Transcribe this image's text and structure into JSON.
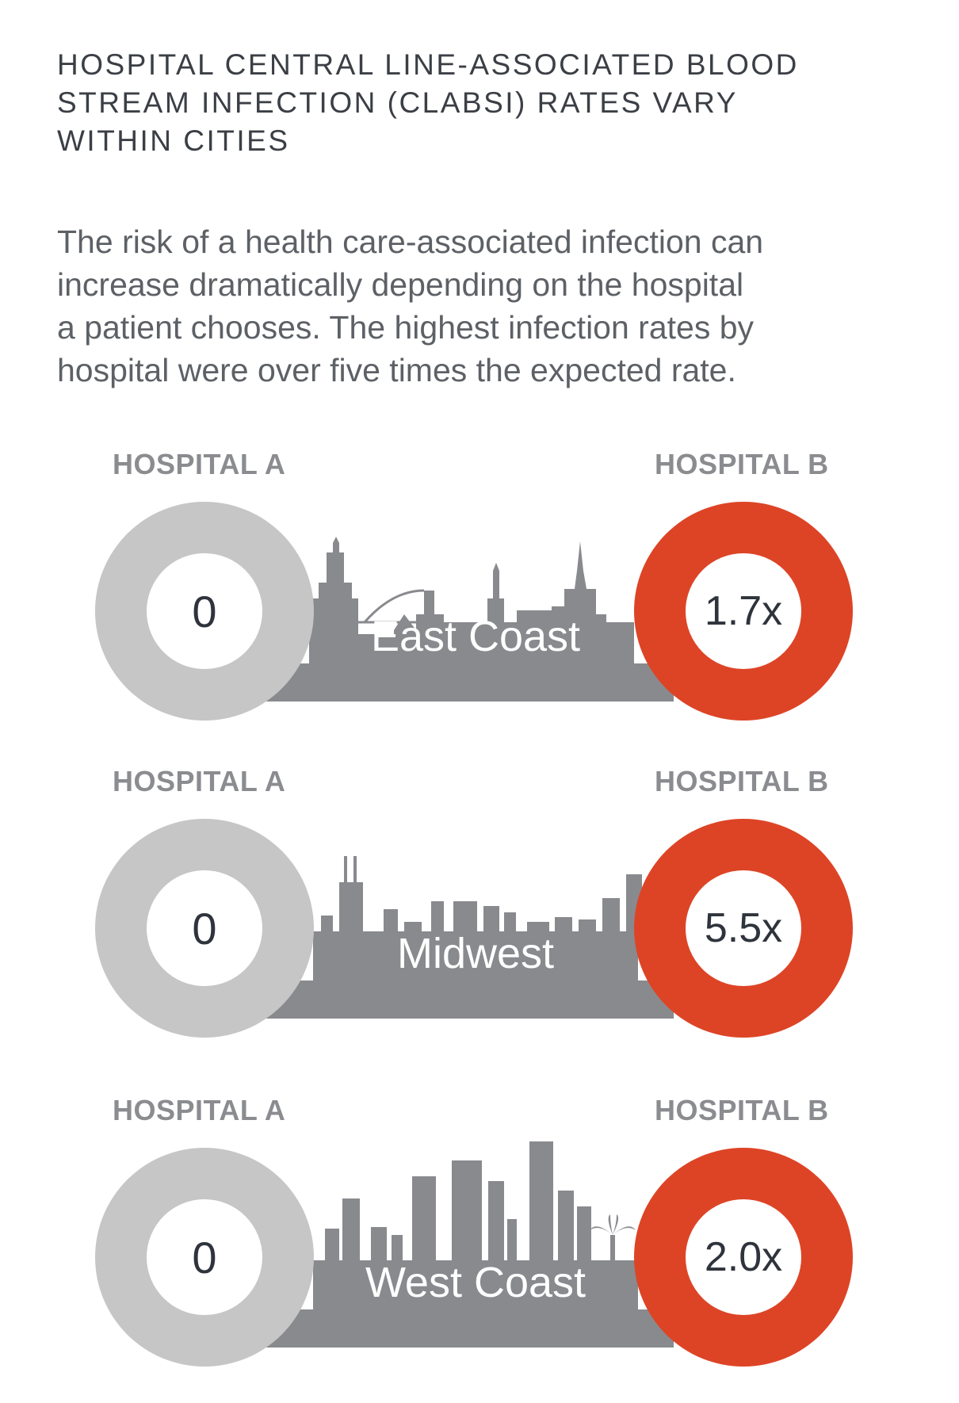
{
  "title": {
    "lines": [
      "HOSPITAL CENTRAL LINE-ASSOCIATED BLOOD",
      "STREAM INFECTION (CLABSI) RATES VARY",
      "WITHIN CITIES"
    ]
  },
  "intro": {
    "lines": [
      "The risk of a health care-associated infection can",
      "increase dramatically depending on the hospital",
      "a patient chooses. The highest infection rates by",
      "hospital were over five times the expected rate."
    ]
  },
  "colors": {
    "hospital_a": "#c6c6c7",
    "hospital_b": "#dd4426",
    "skyline": "#898a8e"
  },
  "comparisons": [
    {
      "region": "East Coast",
      "label_a": "HOSPITAL A",
      "label_b": "HOSPITAL B",
      "value_a": "0",
      "value_b": "1.7x",
      "skyline_icon": "new-york-skyline-icon"
    },
    {
      "region": "Midwest",
      "label_a": "HOSPITAL A",
      "label_b": "HOSPITAL B",
      "value_a": "0",
      "value_b": "5.5x",
      "skyline_icon": "chicago-skyline-icon"
    },
    {
      "region": "West Coast",
      "label_a": "HOSPITAL A",
      "label_b": "HOSPITAL B",
      "value_a": "0",
      "value_b": "2.0x",
      "skyline_icon": "los-angeles-skyline-icon"
    }
  ]
}
